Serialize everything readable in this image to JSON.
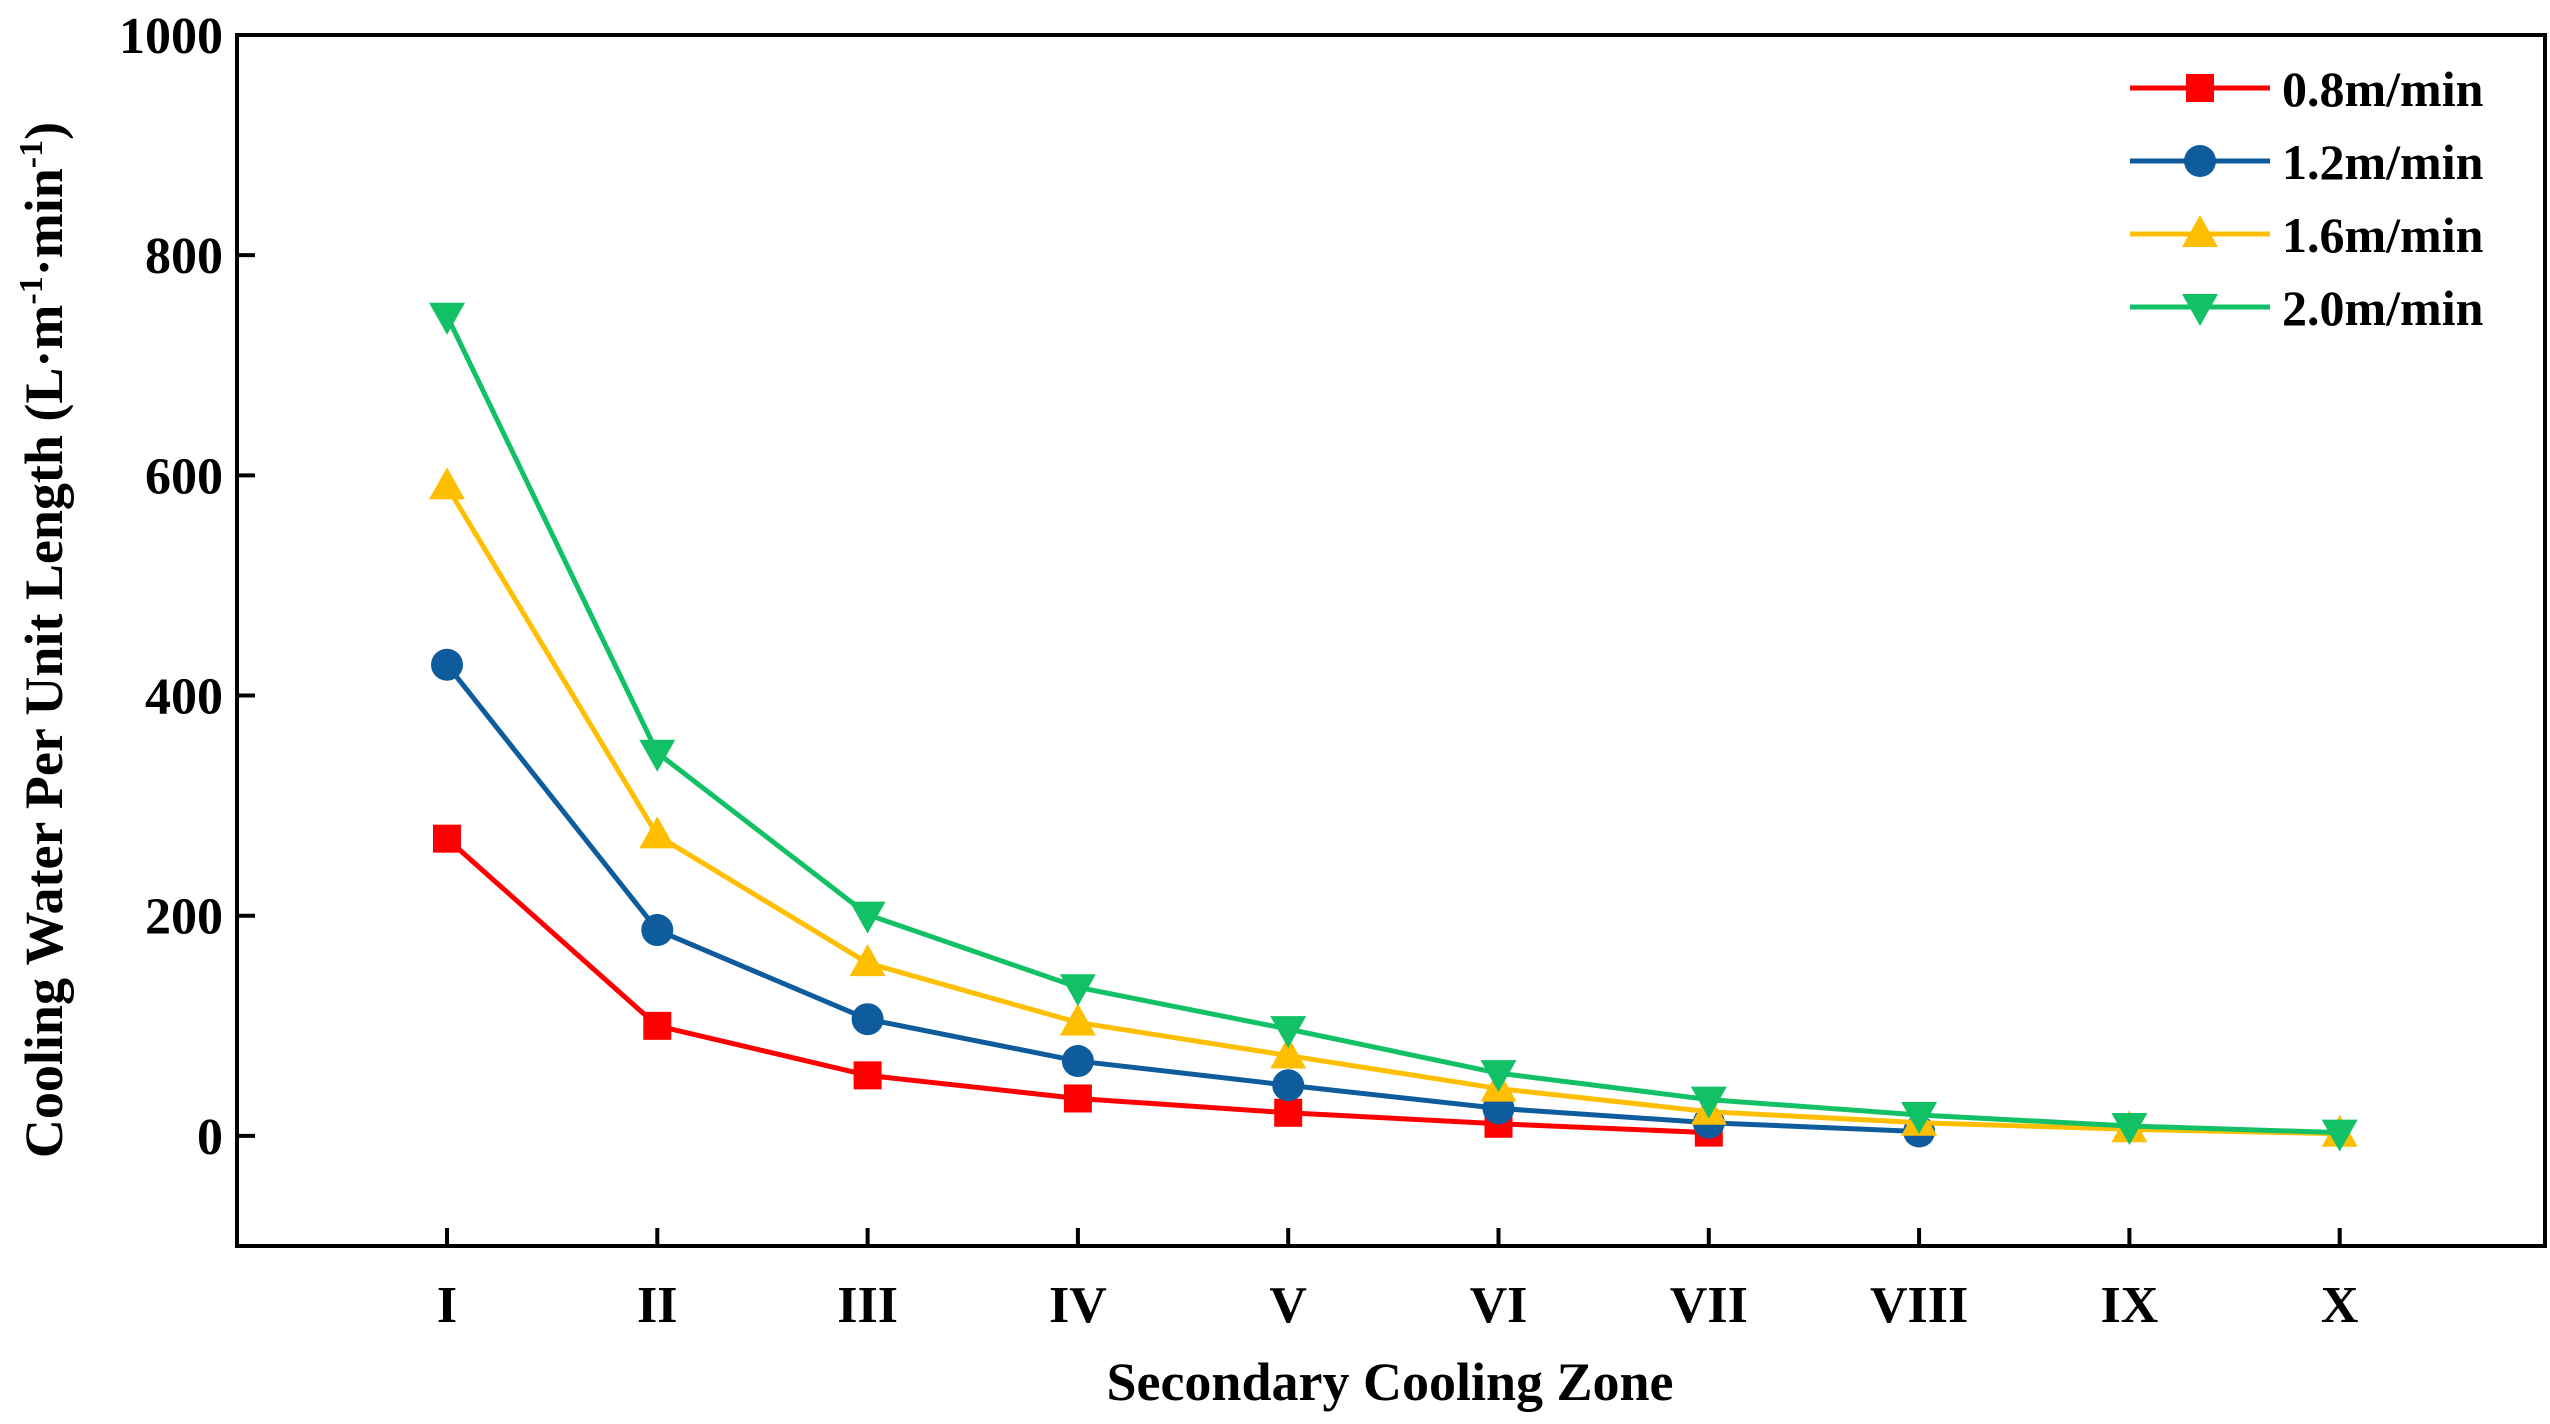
{
  "chart_data": {
    "type": "line",
    "title": "",
    "xlabel": "Secondary Cooling Zone",
    "ylabel": "Cooling Water Per Unit Length (L·m⁻¹·min⁻¹)",
    "ylabel_parts": {
      "main": "Cooling Water Per Unit Length (L·m",
      "sup1": "-1",
      "mid": "·min",
      "sup2": "-1",
      "end": ")"
    },
    "categories": [
      "I",
      "II",
      "III",
      "IV",
      "V",
      "VI",
      "VII",
      "VIII",
      "IX",
      "X"
    ],
    "ylim": [
      -100,
      1000
    ],
    "yticks": [
      0,
      200,
      400,
      600,
      800,
      1000
    ],
    "grid": false,
    "legend_position": "top-right",
    "series": [
      {
        "name": "0.8m/min",
        "color": "#ff0000",
        "marker": "square",
        "values": [
          270,
          100,
          55,
          34,
          21,
          11,
          3,
          null,
          null,
          null
        ]
      },
      {
        "name": "1.2m/min",
        "color": "#0e5c9c",
        "marker": "circle",
        "values": [
          428,
          187,
          106,
          68,
          46,
          25,
          12,
          4,
          null,
          null
        ]
      },
      {
        "name": "1.6m/min",
        "color": "#ffbf00",
        "marker": "triangle-up",
        "values": [
          590,
          273,
          157,
          103,
          73,
          43,
          22,
          12,
          6,
          2
        ]
      },
      {
        "name": "2.0m/min",
        "color": "#12c165",
        "marker": "triangle-down",
        "values": [
          745,
          348,
          201,
          135,
          97,
          57,
          33,
          19,
          9,
          3
        ]
      }
    ]
  }
}
